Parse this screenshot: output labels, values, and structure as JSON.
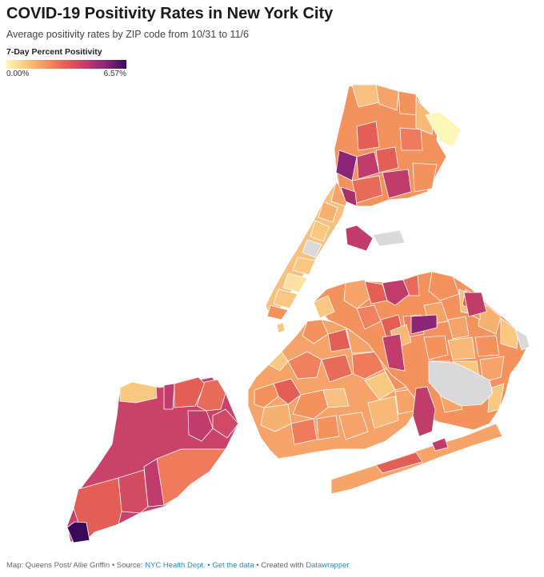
{
  "header": {
    "title": "COVID-19 Positivity Rates in New York City",
    "subtitle": "Average positivity rates by ZIP code from 10/31 to 11/6"
  },
  "legend": {
    "title": "7-Day Percent Positivity",
    "min_label": "0.00%",
    "max_label": "6.57%",
    "min_value": 0,
    "max_value": 6.57,
    "colors": [
      "#fcf6b7",
      "#f8c780",
      "#f3925c",
      "#e35e55",
      "#c03c6b",
      "#8a2577",
      "#3a0a5a"
    ]
  },
  "map": {
    "no_data_color": "#d9d9d9",
    "border_color": "#ffffff"
  },
  "footer": {
    "credit": "Map: Queens Post/ Allie Griffin",
    "sep1": " • Source: ",
    "source": "NYC Health Dept.",
    "sep2": " • ",
    "get_data": "Get the data",
    "sep3": " • Created with ",
    "tool": "Datawrapper"
  }
}
